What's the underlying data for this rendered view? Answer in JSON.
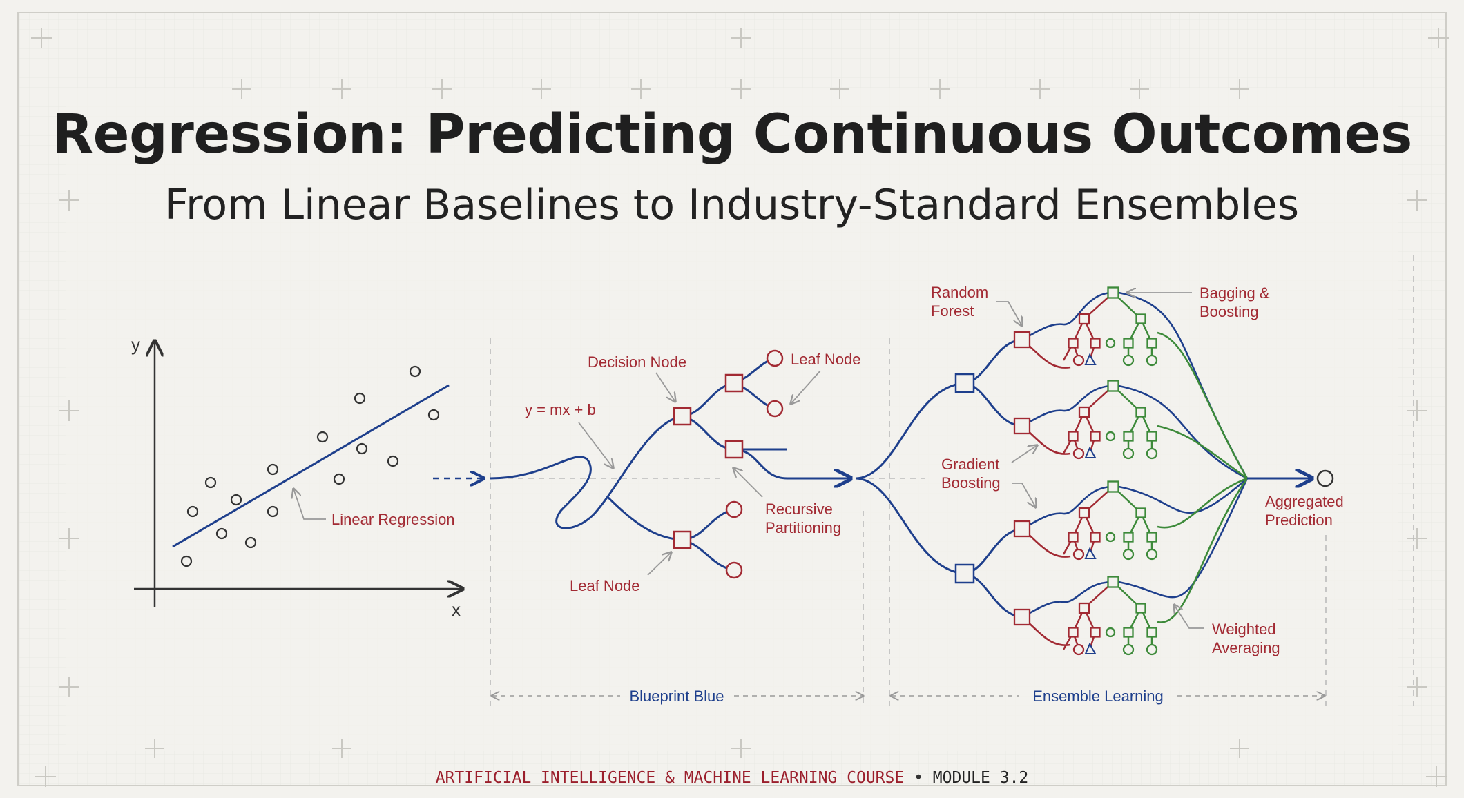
{
  "header": {
    "title": "Regression: Predicting Continuous Outcomes",
    "subtitle": "From Linear Baselines to Industry-Standard Ensembles"
  },
  "linear_panel": {
    "y_axis_label": "y",
    "x_axis_label": "x",
    "line_label": "Linear Regression"
  },
  "tree_panel": {
    "equation_label": "y = mx + b",
    "decision_node_label": "Decision Node",
    "leaf_node_top_label": "Leaf Node",
    "leaf_node_bottom_label": "Leaf Node",
    "recursive_label_line1": "Recursive",
    "recursive_label_line2": "Partitioning",
    "span_label": "Blueprint Blue"
  },
  "ensemble_panel": {
    "random_forest_line1": "Random",
    "random_forest_line2": "Forest",
    "bagging_line1": "Bagging &",
    "bagging_line2": "Boosting",
    "gradient_line1": "Gradient",
    "gradient_line2": "Boosting",
    "weighted_line1": "Weighted",
    "weighted_line2": "Averaging",
    "aggregated_line1": "Aggregated",
    "aggregated_line2": "Prediction",
    "span_label": "Ensemble Learning"
  },
  "footer": {
    "course": "ARTIFICIAL INTELLIGENCE & MACHINE LEARNING COURSE",
    "separator": "•",
    "module": "MODULE 3.2"
  },
  "colors": {
    "background": "#f3f2ee",
    "blue": "#1e3f8c",
    "red": "#a22a33",
    "green": "#3d8a3a",
    "grid": "#dcdbd5"
  }
}
